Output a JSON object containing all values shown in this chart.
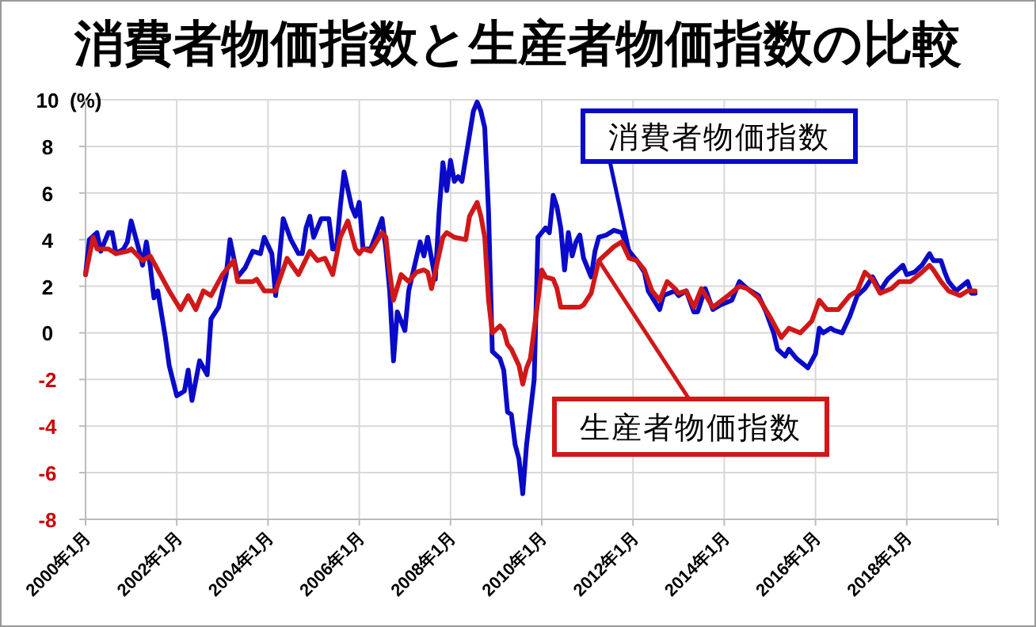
{
  "chart_data": {
    "type": "line",
    "title": "消費者物価指数と生産者物価指数の比較",
    "ylabel": "(%)",
    "xlim": [
      "2000-01",
      "2020-01"
    ],
    "xticks": [
      {
        "value": "2000-01",
        "label": "2000年1月"
      },
      {
        "value": "2002-01",
        "label": "2002年1月"
      },
      {
        "value": "2004-01",
        "label": "2004年1月"
      },
      {
        "value": "2006-01",
        "label": "2006年1月"
      },
      {
        "value": "2008-01",
        "label": "2008年1月"
      },
      {
        "value": "2010-01",
        "label": "2010年1月"
      },
      {
        "value": "2012-01",
        "label": "2012年1月"
      },
      {
        "value": "2014-01",
        "label": "2014年1月"
      },
      {
        "value": "2016-01",
        "label": "2016年1月"
      },
      {
        "value": "2018-01",
        "label": "2018年1月"
      },
      {
        "value": "2020-01",
        "label": null
      }
    ],
    "ylim": [
      -8,
      10
    ],
    "yticks": [
      -8,
      -6,
      -4,
      -2,
      0,
      2,
      4,
      6,
      8,
      10
    ],
    "grid": true,
    "marker": "none",
    "line_style": "solid",
    "series": [
      {
        "name": "消費者物価指数",
        "color": "#0a0ac8",
        "x": [
          "2000-01",
          "2000-02",
          "2000-04",
          "2000-05",
          "2000-07",
          "2000-08",
          "2000-09",
          "2000-11",
          "2000-12",
          "2001-01",
          "2001-03",
          "2001-04",
          "2001-05",
          "2001-06",
          "2001-07",
          "2001-08",
          "2001-10",
          "2001-11",
          "2002-01",
          "2002-03",
          "2002-04",
          "2002-05",
          "2002-07",
          "2002-09",
          "2002-10",
          "2002-12",
          "2003-02",
          "2003-03",
          "2003-05",
          "2003-07",
          "2003-09",
          "2003-11",
          "2003-12",
          "2004-02",
          "2004-03",
          "2004-05",
          "2004-07",
          "2004-09",
          "2004-10",
          "2004-11",
          "2004-12",
          "2005-01",
          "2005-03",
          "2005-05",
          "2005-06",
          "2005-07",
          "2005-08",
          "2005-09",
          "2005-11",
          "2005-12",
          "2006-01",
          "2006-02",
          "2006-04",
          "2006-07",
          "2006-08",
          "2006-09",
          "2006-10",
          "2006-11",
          "2006-12",
          "2007-01",
          "2007-02",
          "2007-04",
          "2007-05",
          "2007-06",
          "2007-07",
          "2007-08",
          "2007-09",
          "2007-10",
          "2007-11",
          "2007-12",
          "2008-01",
          "2008-02",
          "2008-03",
          "2008-04",
          "2008-05",
          "2008-07",
          "2008-08",
          "2008-09",
          "2008-10",
          "2008-11",
          "2008-12",
          "2009-02",
          "2009-03",
          "2009-04",
          "2009-05",
          "2009-06",
          "2009-07",
          "2009-08",
          "2009-09",
          "2009-11",
          "2009-12",
          "2010-02",
          "2010-03",
          "2010-04",
          "2010-05",
          "2010-06",
          "2010-07",
          "2010-08",
          "2010-09",
          "2010-10",
          "2010-11",
          "2010-12",
          "2011-01",
          "2011-02",
          "2011-03",
          "2011-04",
          "2011-06",
          "2011-08",
          "2011-10",
          "2011-12",
          "2012-02",
          "2012-04",
          "2012-05",
          "2012-08",
          "2012-09",
          "2012-12",
          "2013-01",
          "2013-03",
          "2013-05",
          "2013-06",
          "2013-08",
          "2013-10",
          "2013-12",
          "2014-03",
          "2014-05",
          "2014-07",
          "2014-10",
          "2014-12",
          "2015-02",
          "2015-03",
          "2015-05",
          "2015-06",
          "2015-08",
          "2015-11",
          "2016-01",
          "2016-02",
          "2016-03",
          "2016-05",
          "2016-06",
          "2016-08",
          "2016-10",
          "2016-12",
          "2017-02",
          "2017-04",
          "2017-06",
          "2017-08",
          "2017-10",
          "2017-12",
          "2018-01",
          "2018-03",
          "2018-05",
          "2018-07",
          "2018-08",
          "2018-10",
          "2018-11",
          "2018-12",
          "2019-02",
          "2019-05",
          "2019-06",
          "2019-07"
        ],
        "values": [
          2.5,
          4.0,
          4.3,
          3.5,
          4.3,
          4.3,
          3.4,
          3.6,
          3.9,
          4.8,
          3.6,
          2.9,
          3.9,
          2.9,
          1.5,
          1.8,
          -0.2,
          -1.4,
          -2.7,
          -2.5,
          -1.6,
          -2.9,
          -1.2,
          -1.8,
          0.6,
          1.1,
          2.5,
          4.0,
          2.4,
          2.8,
          3.5,
          3.4,
          4.1,
          3.4,
          1.6,
          4.9,
          4.0,
          3.4,
          3.4,
          4.5,
          5.0,
          4.1,
          4.9,
          4.9,
          3.6,
          3.6,
          5.4,
          6.9,
          5.4,
          5.0,
          5.6,
          3.6,
          3.6,
          4.9,
          3.6,
          1.8,
          -1.2,
          0.9,
          0.5,
          0.1,
          1.8,
          3.2,
          3.9,
          3.3,
          4.1,
          3.2,
          2.3,
          5.2,
          7.3,
          6.1,
          7.4,
          6.5,
          6.7,
          6.5,
          7.5,
          9.5,
          9.9,
          9.5,
          8.8,
          5.2,
          -0.8,
          -1.1,
          -1.6,
          -3.4,
          -3.5,
          -4.8,
          -5.4,
          -6.9,
          -4.8,
          -2.0,
          4.1,
          4.5,
          4.3,
          5.9,
          5.4,
          4.5,
          2.7,
          4.3,
          3.3,
          3.9,
          4.2,
          3.2,
          2.8,
          2.4,
          3.5,
          4.1,
          4.2,
          4.4,
          4.3,
          3.5,
          3.1,
          2.6,
          1.8,
          1.0,
          1.6,
          1.8,
          1.6,
          1.8,
          0.9,
          0.9,
          1.9,
          1.0,
          1.2,
          1.4,
          2.2,
          1.9,
          1.6,
          0.9,
          0.0,
          -0.7,
          -1.0,
          -0.7,
          -1.1,
          -1.5,
          -0.9,
          0.2,
          0.0,
          0.2,
          0.1,
          0.0,
          0.7,
          1.6,
          1.9,
          2.4,
          1.8,
          2.3,
          2.6,
          2.9,
          2.5,
          2.6,
          2.9,
          3.4,
          3.1,
          3.1,
          2.6,
          2.2,
          1.8,
          2.2,
          1.7,
          1.7
        ]
      },
      {
        "name": "生産者物価指数",
        "color": "#d01818",
        "x": [
          "2000-01",
          "2000-03",
          "2000-04",
          "2000-07",
          "2000-09",
          "2000-12",
          "2001-01",
          "2001-04",
          "2001-06",
          "2001-08",
          "2001-11",
          "2002-02",
          "2002-04",
          "2002-06",
          "2002-08",
          "2002-10",
          "2003-01",
          "2003-04",
          "2003-05",
          "2003-09",
          "2003-10",
          "2003-12",
          "2004-02",
          "2004-03",
          "2004-06",
          "2004-09",
          "2004-12",
          "2005-02",
          "2005-04",
          "2005-06",
          "2005-08",
          "2005-10",
          "2005-12",
          "2006-01",
          "2006-02",
          "2006-04",
          "2006-07",
          "2006-08",
          "2006-09",
          "2006-10",
          "2006-12",
          "2007-02",
          "2007-04",
          "2007-06",
          "2007-07",
          "2007-08",
          "2007-11",
          "2007-12",
          "2008-02",
          "2008-05",
          "2008-06",
          "2008-08",
          "2008-09",
          "2008-10",
          "2008-11",
          "2008-12",
          "2009-02",
          "2009-03",
          "2009-04",
          "2009-05",
          "2009-07",
          "2009-08",
          "2009-09",
          "2009-10",
          "2009-12",
          "2010-01",
          "2010-02",
          "2010-04",
          "2010-05",
          "2010-06",
          "2010-09",
          "2010-11",
          "2010-12",
          "2011-02",
          "2011-04",
          "2011-06",
          "2011-08",
          "2011-10",
          "2011-12",
          "2012-02",
          "2012-04",
          "2012-06",
          "2012-08",
          "2012-10",
          "2012-12",
          "2013-01",
          "2013-03",
          "2013-05",
          "2013-07",
          "2013-10",
          "2014-02",
          "2014-05",
          "2014-07",
          "2014-10",
          "2015-01",
          "2015-04",
          "2015-06",
          "2015-09",
          "2015-12",
          "2016-02",
          "2016-04",
          "2016-07",
          "2016-10",
          "2016-12",
          "2017-02",
          "2017-04",
          "2017-06",
          "2017-09",
          "2017-11",
          "2018-02",
          "2018-05",
          "2018-07",
          "2018-08",
          "2018-10",
          "2018-12",
          "2019-03",
          "2019-05",
          "2019-07"
        ],
        "values": [
          2.5,
          4.1,
          3.6,
          3.6,
          3.4,
          3.5,
          3.6,
          3.1,
          3.3,
          2.7,
          1.8,
          1.0,
          1.6,
          1.0,
          1.8,
          1.6,
          2.5,
          3.1,
          2.2,
          2.2,
          2.3,
          1.8,
          1.8,
          1.8,
          3.2,
          2.5,
          3.5,
          3.1,
          3.2,
          2.5,
          4.1,
          4.8,
          3.6,
          3.4,
          3.6,
          3.5,
          4.3,
          4.1,
          2.6,
          1.4,
          2.5,
          2.2,
          2.6,
          2.7,
          2.6,
          1.9,
          4.1,
          4.3,
          4.1,
          4.0,
          5.0,
          5.6,
          5.0,
          4.1,
          1.4,
          0.0,
          0.3,
          0.1,
          -0.5,
          -0.7,
          -1.4,
          -2.2,
          -1.5,
          -1.1,
          1.4,
          2.7,
          2.4,
          2.3,
          1.9,
          1.1,
          1.1,
          1.1,
          1.2,
          1.7,
          3.1,
          3.4,
          3.7,
          3.9,
          3.2,
          3.1,
          2.7,
          1.8,
          1.4,
          2.2,
          1.9,
          1.7,
          1.8,
          1.1,
          1.9,
          1.1,
          1.6,
          2.0,
          1.9,
          1.5,
          0.7,
          -0.2,
          0.2,
          0.0,
          0.5,
          1.4,
          1.0,
          1.0,
          1.6,
          1.8,
          2.6,
          2.3,
          1.7,
          1.9,
          2.2,
          2.2,
          2.6,
          2.9,
          2.7,
          2.2,
          1.8,
          1.6,
          1.8,
          1.8
        ]
      }
    ]
  }
}
